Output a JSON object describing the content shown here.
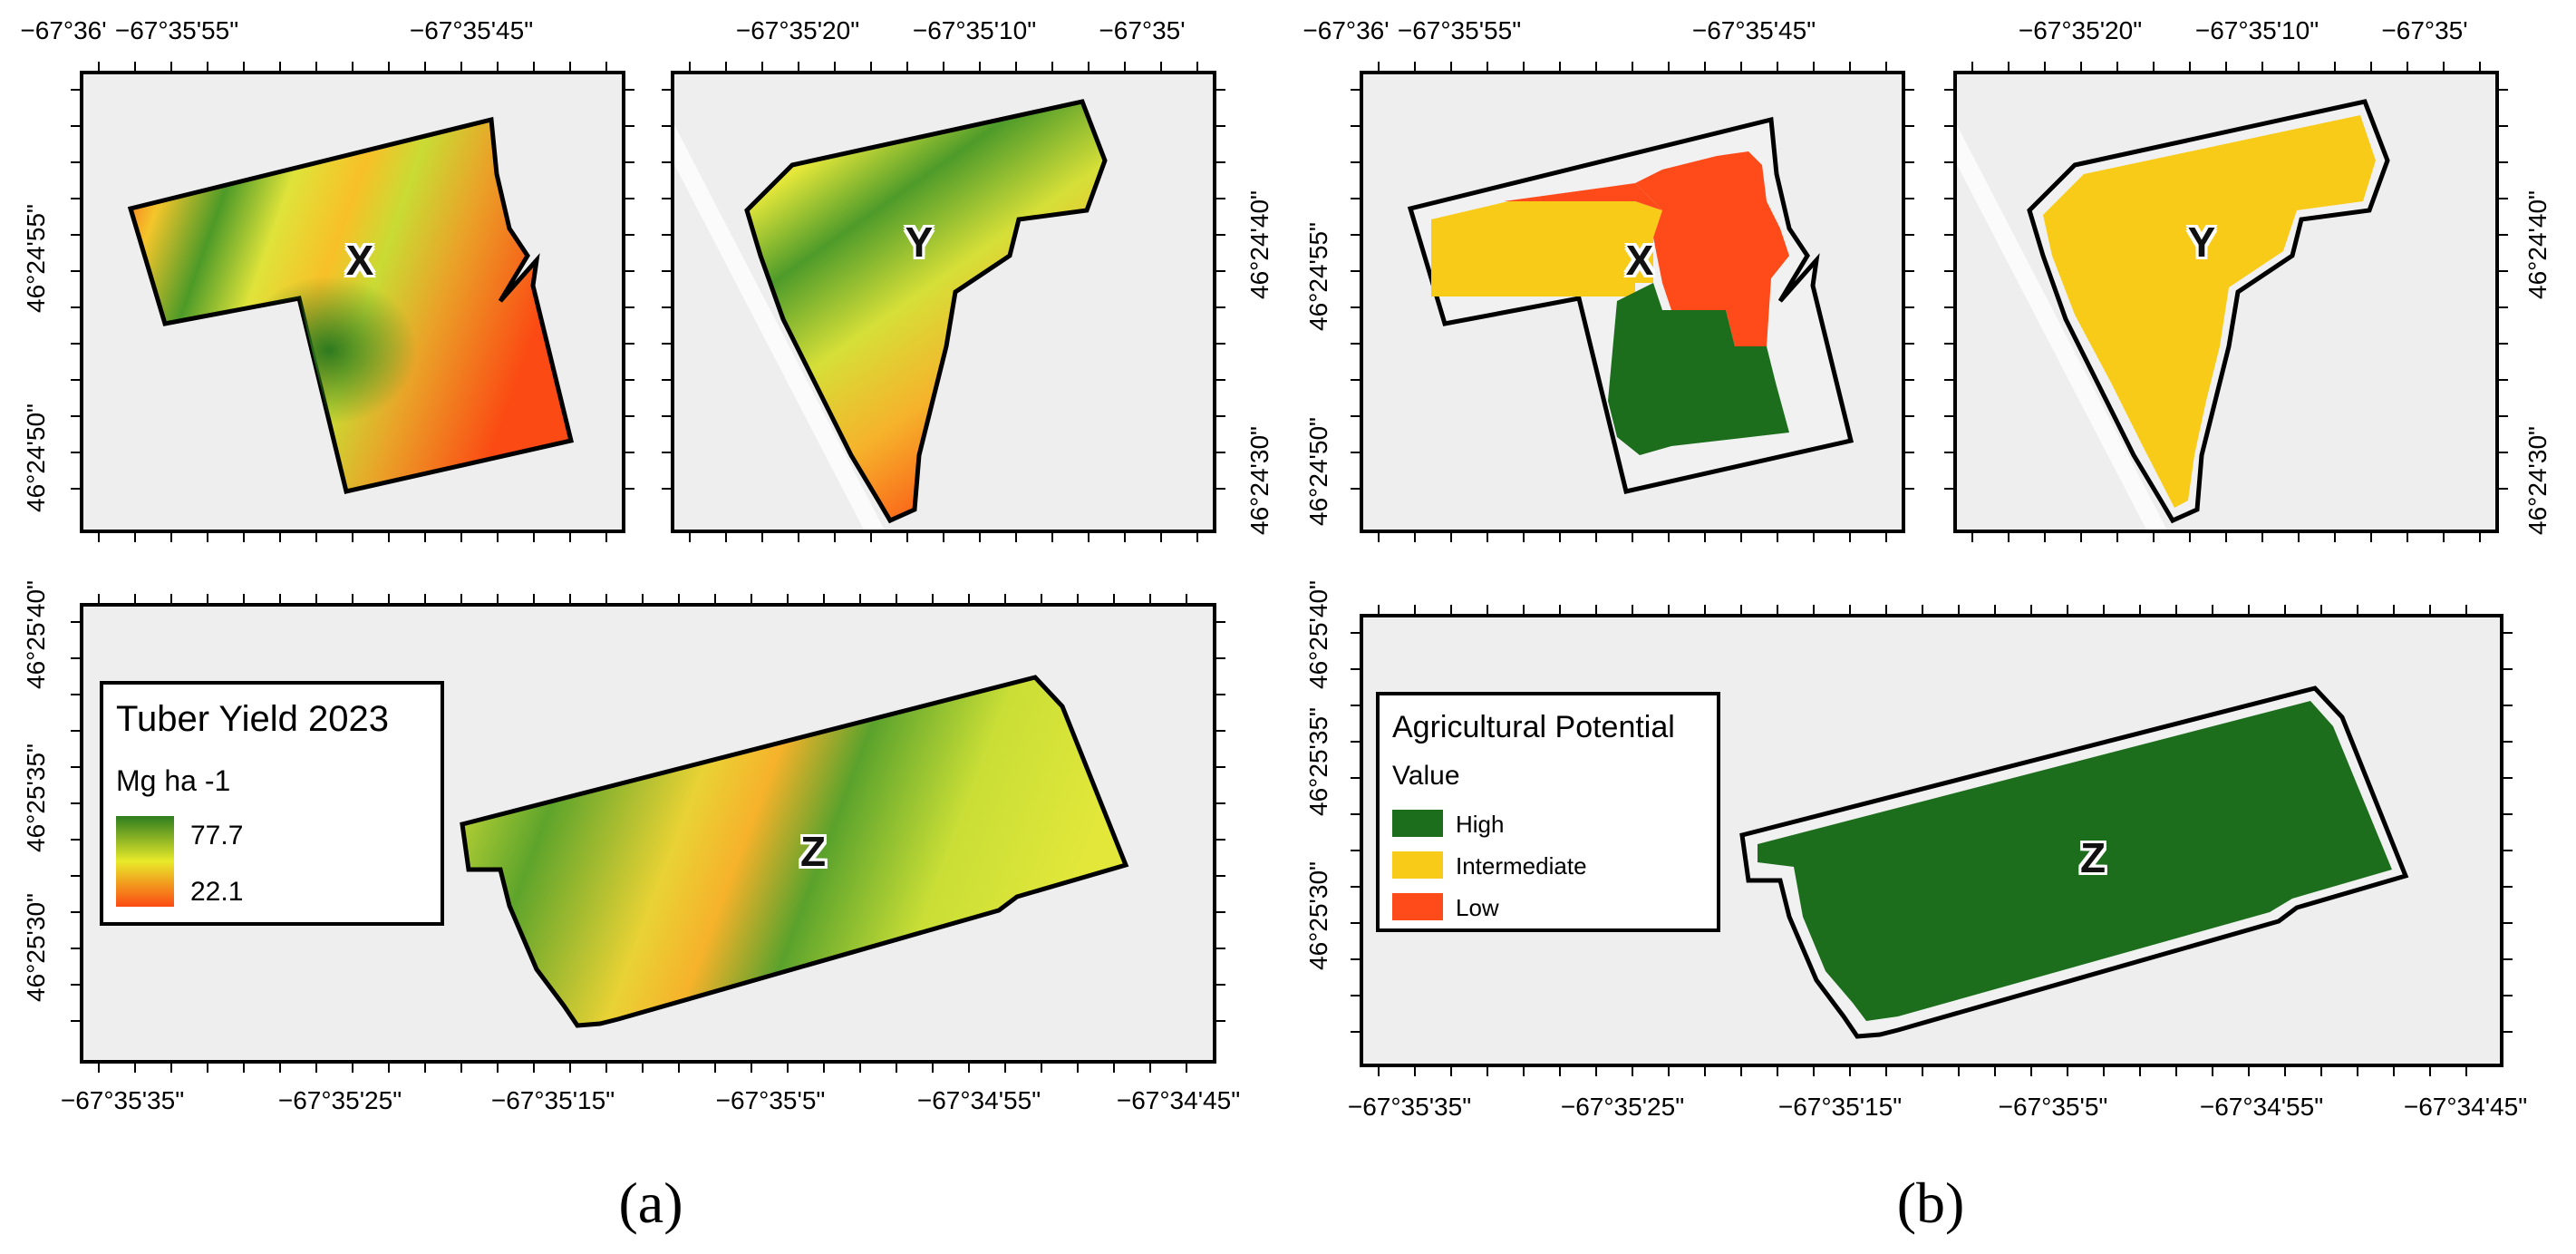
{
  "panels": {
    "a": {
      "caption": "(a)",
      "x_top_left": [
        "−67°36'",
        "−67°35'55\"",
        "−67°35'45\""
      ],
      "x_top_right": [
        "−67°35'20\"",
        "−67°35'10\"",
        "−67°35'"
      ],
      "y_left_top": "46°24'55\"",
      "y_left_bottom": "46°24'50\"",
      "y_right_top": "46°24'40\"",
      "y_right_bottom": "46°24'30\"",
      "y_left_lower_top": "46°25'40\"",
      "y_left_lower_mid": "46°25'35\"",
      "y_left_lower_bot": "46°25'30\"",
      "x_bottom": [
        "−67°35'35\"",
        "−67°35'25\"",
        "−67°35'15\"",
        "−67°35'5\"",
        "−67°34'55\"",
        "−67°34'45\""
      ],
      "fields": {
        "x": "X",
        "y": "Y",
        "z": "Z"
      },
      "legend": {
        "title": "Tuber Yield 2023",
        "unit": "Mg ha -1",
        "max": "77.7",
        "min": "22.1",
        "color_high": "#2e7d1f",
        "color_mid": "#e9ea2a",
        "color_low": "#fb4a13"
      }
    },
    "b": {
      "caption": "(b)",
      "x_top_left": [
        "−67°36'",
        "−67°35'55\"",
        "−67°35'45\""
      ],
      "x_top_right": [
        "−67°35'20\"",
        "−67°35'10\"",
        "−67°35'"
      ],
      "y_left_top": "46°24'55\"",
      "y_left_bottom": "46°24'50\"",
      "y_right_top": "46°24'40\"",
      "y_right_bottom": "46°24'30\"",
      "y_left_lower_top": "46°25'40\"",
      "y_left_lower_mid": "46°25'35\"",
      "y_left_lower_bot": "46°25'30\"",
      "x_bottom": [
        "−67°35'35\"",
        "−67°35'25\"",
        "−67°35'15\"",
        "−67°35'5\"",
        "−67°34'55\"",
        "−67°34'45\""
      ],
      "fields": {
        "x": "X",
        "y": "Y",
        "z": "Z"
      },
      "legend": {
        "title": "Agricultural Potential",
        "subtitle": "Value",
        "items": [
          {
            "label": "High",
            "color": "#1c6e1c"
          },
          {
            "label": "Intermediate",
            "color": "#f9cb19"
          },
          {
            "label": "Low",
            "color": "#ff4a1a"
          }
        ]
      }
    }
  }
}
